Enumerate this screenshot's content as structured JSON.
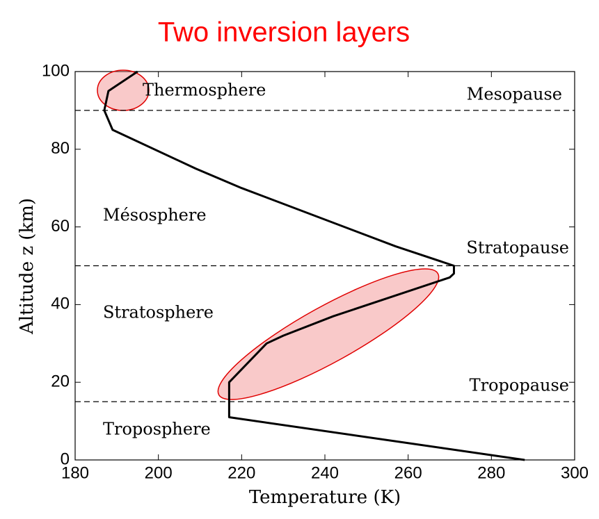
{
  "chart_data": {
    "type": "line",
    "title": "Two inversion layers",
    "x_label": "Temperature (K)",
    "y_label": "Altitude z (km)",
    "x": [
      288,
      217,
      217,
      226,
      230,
      242,
      270,
      271,
      271,
      257,
      220,
      209,
      189,
      187,
      188,
      195
    ],
    "series": [
      {
        "color": "#000000",
        "values": [
          0,
          11,
          20,
          30,
          32,
          37,
          47,
          48,
          50,
          55,
          70,
          75,
          85,
          90,
          95,
          100
        ]
      }
    ],
    "hlines": [
      15,
      50,
      90
    ],
    "annotations": [
      "Thermosphere",
      "Mesopause",
      "Mésosphere",
      "Stratopause",
      "Stratosphere",
      "Tropopause",
      "Troposphere"
    ],
    "xlim": [
      180,
      300
    ],
    "xticks": [
      180,
      200,
      220,
      240,
      260,
      280,
      300
    ],
    "ylim": [
      0,
      100
    ],
    "yticks": [
      0,
      20,
      40,
      60,
      80,
      100
    ]
  }
}
